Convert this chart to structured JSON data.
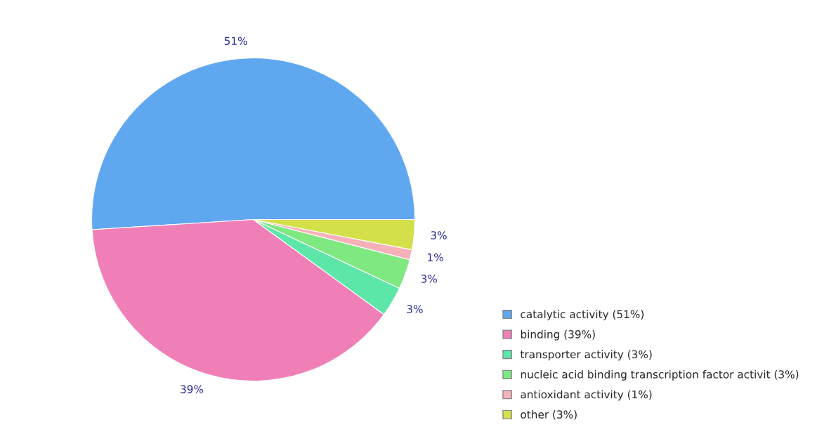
{
  "chart_data": {
    "type": "pie",
    "categories": [
      "catalytic activity (51%)",
      "binding (39%)",
      "transporter activity (3%)",
      "nucleic acid binding transcription factor activit (3%)",
      "antioxidant activity (1%)",
      "other (3%)"
    ],
    "values": [
      51,
      39,
      3,
      3,
      1,
      3
    ],
    "colors": [
      "#5fa8f0",
      "#f07fb8",
      "#5ce6a8",
      "#80e880",
      "#f5b0b8",
      "#d4e04a"
    ],
    "value_labels": [
      "51%",
      "39%",
      "3%",
      "3%",
      "1%",
      "3%"
    ],
    "legend": "bottom right"
  }
}
